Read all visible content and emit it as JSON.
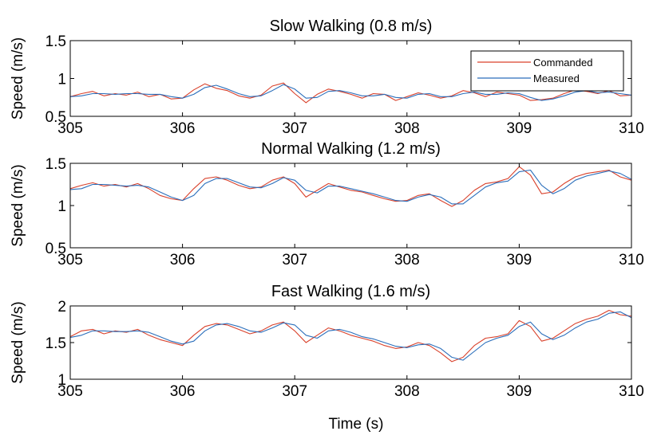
{
  "chart_data": {
    "type": "line",
    "xlabel": "Time (s)",
    "legend": {
      "placement": "top-right",
      "entries": [
        "Commanded",
        "Measured"
      ]
    },
    "colors": {
      "Commanded": "#d9412b",
      "Measured": "#2a6ebb"
    },
    "panels": [
      {
        "title": "Slow Walking (0.8 m/s)",
        "ylabel": "Speed (m/s)",
        "xlim": [
          305,
          310
        ],
        "ylim": [
          0.5,
          1.5
        ],
        "xticks": [
          "305",
          "306",
          "307",
          "308",
          "309",
          "310"
        ],
        "yticks": [
          "0.5",
          "1",
          "1.5"
        ],
        "grid": false,
        "show_legend": true,
        "series": [
          {
            "name": "Commanded",
            "x": [
              305.0,
              305.1,
              305.2,
              305.3,
              305.4,
              305.5,
              305.6,
              305.7,
              305.8,
              305.9,
              306.0,
              306.1,
              306.2,
              306.3,
              306.4,
              306.5,
              306.6,
              306.7,
              306.8,
              306.9,
              307.0,
              307.1,
              307.2,
              307.3,
              307.4,
              307.5,
              307.6,
              307.7,
              307.8,
              307.9,
              308.0,
              308.1,
              308.2,
              308.3,
              308.4,
              308.5,
              308.6,
              308.7,
              308.8,
              308.9,
              309.0,
              309.1,
              309.2,
              309.3,
              309.4,
              309.5,
              309.6,
              309.7,
              309.8,
              309.9,
              310.0
            ],
            "y": [
              0.76,
              0.8,
              0.83,
              0.77,
              0.8,
              0.78,
              0.82,
              0.76,
              0.79,
              0.73,
              0.74,
              0.85,
              0.93,
              0.87,
              0.84,
              0.77,
              0.74,
              0.78,
              0.9,
              0.94,
              0.8,
              0.68,
              0.79,
              0.86,
              0.83,
              0.79,
              0.74,
              0.8,
              0.79,
              0.71,
              0.76,
              0.81,
              0.78,
              0.74,
              0.77,
              0.84,
              0.81,
              0.76,
              0.82,
              0.8,
              0.78,
              0.71,
              0.72,
              0.74,
              0.8,
              0.85,
              0.83,
              0.8,
              0.84,
              0.77,
              0.78
            ]
          },
          {
            "name": "Measured",
            "x": [
              305.0,
              305.1,
              305.2,
              305.3,
              305.4,
              305.5,
              305.6,
              305.7,
              305.8,
              305.9,
              306.0,
              306.1,
              306.2,
              306.3,
              306.4,
              306.5,
              306.6,
              306.7,
              306.8,
              306.9,
              307.0,
              307.1,
              307.2,
              307.3,
              307.4,
              307.5,
              307.6,
              307.7,
              307.8,
              307.9,
              308.0,
              308.1,
              308.2,
              308.3,
              308.4,
              308.5,
              308.6,
              308.7,
              308.8,
              308.9,
              309.0,
              309.1,
              309.2,
              309.3,
              309.4,
              309.5,
              309.6,
              309.7,
              309.8,
              309.9,
              310.0
            ],
            "y": [
              0.76,
              0.77,
              0.8,
              0.8,
              0.79,
              0.8,
              0.8,
              0.79,
              0.79,
              0.76,
              0.74,
              0.79,
              0.88,
              0.91,
              0.86,
              0.8,
              0.76,
              0.77,
              0.84,
              0.92,
              0.86,
              0.74,
              0.75,
              0.83,
              0.84,
              0.81,
              0.77,
              0.77,
              0.79,
              0.75,
              0.74,
              0.79,
              0.8,
              0.76,
              0.76,
              0.8,
              0.82,
              0.79,
              0.79,
              0.81,
              0.8,
              0.75,
              0.71,
              0.73,
              0.77,
              0.82,
              0.84,
              0.81,
              0.82,
              0.8,
              0.78
            ]
          }
        ]
      },
      {
        "title": "Normal Walking (1.2 m/s)",
        "ylabel": "Speed (m/s)",
        "xlim": [
          305,
          310
        ],
        "ylim": [
          0.5,
          1.5
        ],
        "xticks": [
          "305",
          "306",
          "307",
          "308",
          "309",
          "310"
        ],
        "yticks": [
          "0.5",
          "1",
          "1.5"
        ],
        "grid": false,
        "show_legend": false,
        "series": [
          {
            "name": "Commanded",
            "x": [
              305.0,
              305.1,
              305.2,
              305.3,
              305.4,
              305.5,
              305.6,
              305.7,
              305.8,
              305.9,
              306.0,
              306.1,
              306.2,
              306.3,
              306.4,
              306.5,
              306.6,
              306.7,
              306.8,
              306.9,
              307.0,
              307.1,
              307.2,
              307.3,
              307.4,
              307.5,
              307.6,
              307.7,
              307.8,
              307.9,
              308.0,
              308.1,
              308.2,
              308.3,
              308.4,
              308.5,
              308.6,
              308.7,
              308.8,
              308.9,
              309.0,
              309.1,
              309.2,
              309.3,
              309.4,
              309.5,
              309.6,
              309.7,
              309.8,
              309.9,
              310.0
            ],
            "y": [
              1.2,
              1.24,
              1.27,
              1.23,
              1.25,
              1.22,
              1.26,
              1.2,
              1.12,
              1.08,
              1.06,
              1.2,
              1.32,
              1.34,
              1.3,
              1.24,
              1.2,
              1.22,
              1.3,
              1.34,
              1.26,
              1.1,
              1.18,
              1.26,
              1.22,
              1.18,
              1.16,
              1.12,
              1.08,
              1.05,
              1.06,
              1.12,
              1.14,
              1.06,
              0.99,
              1.06,
              1.18,
              1.26,
              1.28,
              1.32,
              1.46,
              1.36,
              1.14,
              1.16,
              1.26,
              1.34,
              1.38,
              1.4,
              1.42,
              1.34,
              1.3
            ]
          },
          {
            "name": "Measured",
            "x": [
              305.0,
              305.1,
              305.2,
              305.3,
              305.4,
              305.5,
              305.6,
              305.7,
              305.8,
              305.9,
              306.0,
              306.1,
              306.2,
              306.3,
              306.4,
              306.5,
              306.6,
              306.7,
              306.8,
              306.9,
              307.0,
              307.1,
              307.2,
              307.3,
              307.4,
              307.5,
              307.6,
              307.7,
              307.8,
              307.9,
              308.0,
              308.1,
              308.2,
              308.3,
              308.4,
              308.5,
              308.6,
              308.7,
              308.8,
              308.9,
              309.0,
              309.1,
              309.2,
              309.3,
              309.4,
              309.5,
              309.6,
              309.7,
              309.8,
              309.9,
              310.0
            ],
            "y": [
              1.19,
              1.2,
              1.25,
              1.25,
              1.24,
              1.23,
              1.24,
              1.22,
              1.16,
              1.1,
              1.06,
              1.12,
              1.26,
              1.32,
              1.32,
              1.27,
              1.22,
              1.21,
              1.26,
              1.33,
              1.3,
              1.18,
              1.15,
              1.23,
              1.23,
              1.2,
              1.17,
              1.14,
              1.1,
              1.06,
              1.05,
              1.1,
              1.13,
              1.1,
              1.02,
              1.02,
              1.12,
              1.22,
              1.27,
              1.29,
              1.4,
              1.42,
              1.24,
              1.14,
              1.2,
              1.3,
              1.35,
              1.38,
              1.41,
              1.38,
              1.31
            ]
          }
        ]
      },
      {
        "title": "Fast Walking (1.6 m/s)",
        "ylabel": "Speed (m/s)",
        "xlim": [
          305,
          310
        ],
        "ylim": [
          1,
          2
        ],
        "xticks": [
          "305",
          "306",
          "307",
          "308",
          "309",
          "310"
        ],
        "yticks": [
          "1",
          "1.5",
          "2"
        ],
        "grid": false,
        "show_legend": false,
        "series": [
          {
            "name": "Commanded",
            "x": [
              305.0,
              305.1,
              305.2,
              305.3,
              305.4,
              305.5,
              305.6,
              305.7,
              305.8,
              305.9,
              306.0,
              306.1,
              306.2,
              306.3,
              306.4,
              306.5,
              306.6,
              306.7,
              306.8,
              306.9,
              307.0,
              307.1,
              307.2,
              307.3,
              307.4,
              307.5,
              307.6,
              307.7,
              307.8,
              307.9,
              308.0,
              308.1,
              308.2,
              308.3,
              308.4,
              308.5,
              308.6,
              308.7,
              308.8,
              308.9,
              309.0,
              309.1,
              309.2,
              309.3,
              309.4,
              309.5,
              309.6,
              309.7,
              309.8,
              309.9,
              310.0
            ],
            "y": [
              1.58,
              1.66,
              1.68,
              1.62,
              1.66,
              1.64,
              1.68,
              1.6,
              1.54,
              1.5,
              1.46,
              1.6,
              1.72,
              1.76,
              1.74,
              1.68,
              1.62,
              1.66,
              1.74,
              1.78,
              1.66,
              1.5,
              1.6,
              1.7,
              1.66,
              1.6,
              1.56,
              1.52,
              1.46,
              1.42,
              1.44,
              1.5,
              1.46,
              1.36,
              1.24,
              1.3,
              1.46,
              1.56,
              1.58,
              1.62,
              1.8,
              1.72,
              1.52,
              1.56,
              1.66,
              1.76,
              1.82,
              1.86,
              1.94,
              1.88,
              1.86
            ]
          },
          {
            "name": "Measured",
            "x": [
              305.0,
              305.1,
              305.2,
              305.3,
              305.4,
              305.5,
              305.6,
              305.7,
              305.8,
              305.9,
              306.0,
              306.1,
              306.2,
              306.3,
              306.4,
              306.5,
              306.6,
              306.7,
              306.8,
              306.9,
              307.0,
              307.1,
              307.2,
              307.3,
              307.4,
              307.5,
              307.6,
              307.7,
              307.8,
              307.9,
              308.0,
              308.1,
              308.2,
              308.3,
              308.4,
              308.5,
              308.6,
              308.7,
              308.8,
              308.9,
              309.0,
              309.1,
              309.2,
              309.3,
              309.4,
              309.5,
              309.6,
              309.7,
              309.8,
              309.9,
              310.0
            ],
            "y": [
              1.57,
              1.6,
              1.66,
              1.66,
              1.65,
              1.65,
              1.66,
              1.64,
              1.58,
              1.52,
              1.48,
              1.52,
              1.66,
              1.74,
              1.76,
              1.72,
              1.66,
              1.64,
              1.7,
              1.77,
              1.74,
              1.6,
              1.56,
              1.66,
              1.68,
              1.64,
              1.58,
              1.55,
              1.5,
              1.45,
              1.43,
              1.47,
              1.48,
              1.42,
              1.3,
              1.26,
              1.38,
              1.5,
              1.56,
              1.6,
              1.72,
              1.78,
              1.62,
              1.54,
              1.6,
              1.7,
              1.78,
              1.82,
              1.9,
              1.92,
              1.84
            ]
          }
        ]
      }
    ]
  }
}
